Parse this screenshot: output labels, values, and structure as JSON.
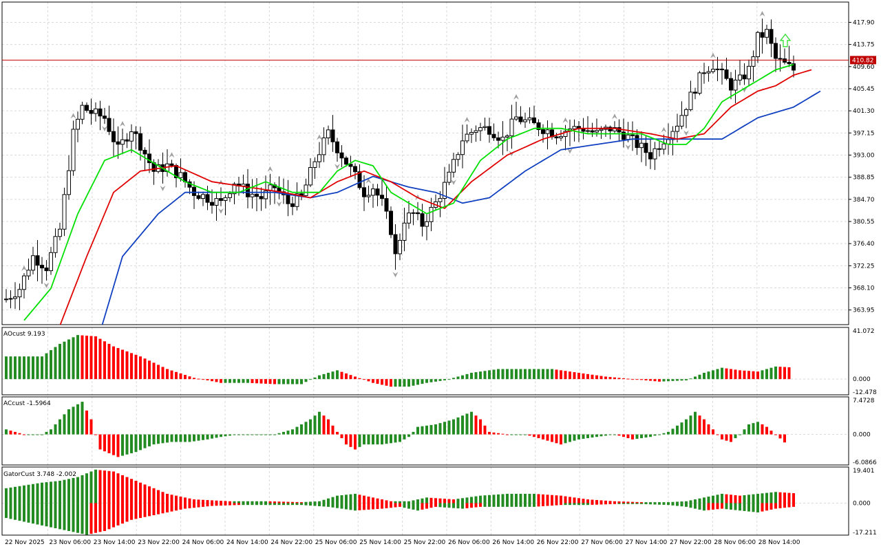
{
  "colors": {
    "bull": "#228B22",
    "bear": "#FF0000",
    "grid": "#d9d9d9",
    "frame": "#000000",
    "alligator_jaw": "#1040C0",
    "alligator_teeth": "#E00000",
    "alligator_lips": "#00E000",
    "price_line": "#C00000",
    "fractal": "#a0a0a0"
  },
  "chart_data": {
    "type": "candlestick",
    "symbol_price_now": "410.82",
    "signal_arrow": "up",
    "x_tick_labels": [
      "22 Nov 2025",
      "23 Nov 06:00",
      "23 Nov 14:00",
      "23 Nov 22:00",
      "24 Nov 06:00",
      "24 Nov 14:00",
      "24 Nov 22:00",
      "25 Nov 06:00",
      "25 Nov 14:00",
      "25 Nov 22:00",
      "26 Nov 06:00",
      "26 Nov 14:00",
      "26 Nov 22:00",
      "27 Nov 06:00",
      "27 Nov 14:00",
      "27 Nov 22:00",
      "28 Nov 06:00",
      "28 Nov 14:00"
    ],
    "price_panel": {
      "y_tick_labels": [
        "417.90",
        "413.75",
        "409.60",
        "405.45",
        "401.30",
        "397.15",
        "393.00",
        "388.85",
        "384.70",
        "380.55",
        "376.40",
        "372.25",
        "368.10",
        "363.95"
      ],
      "ylim": [
        361.2,
        421.7
      ],
      "anchors": [
        [
          0,
          366
        ],
        [
          3,
          368
        ],
        [
          6,
          374
        ],
        [
          9,
          372
        ],
        [
          12,
          379
        ],
        [
          15,
          397
        ],
        [
          17,
          402
        ],
        [
          19,
          401
        ],
        [
          22,
          400
        ],
        [
          25,
          394
        ],
        [
          28,
          398
        ],
        [
          30,
          395
        ],
        [
          33,
          390
        ],
        [
          36,
          391
        ],
        [
          39,
          389
        ],
        [
          42,
          386
        ],
        [
          45,
          385
        ],
        [
          48,
          384
        ],
        [
          51,
          388
        ],
        [
          54,
          386
        ],
        [
          57,
          385
        ],
        [
          60,
          387
        ],
        [
          63,
          384
        ],
        [
          66,
          385
        ],
        [
          69,
          392
        ],
        [
          72,
          397
        ],
        [
          75,
          393
        ],
        [
          78,
          389
        ],
        [
          80,
          386
        ],
        [
          82,
          387
        ],
        [
          84,
          384
        ],
        [
          86,
          379
        ],
        [
          87,
          374
        ],
        [
          89,
          381
        ],
        [
          91,
          382
        ],
        [
          93,
          380
        ],
        [
          96,
          384
        ],
        [
          99,
          389
        ],
        [
          102,
          396
        ],
        [
          105,
          398
        ],
        [
          108,
          398
        ],
        [
          111,
          396
        ],
        [
          114,
          400
        ],
        [
          117,
          399
        ],
        [
          120,
          398
        ],
        [
          123,
          397
        ],
        [
          126,
          398
        ],
        [
          129,
          398
        ],
        [
          132,
          397
        ],
        [
          135,
          398
        ],
        [
          138,
          397
        ],
        [
          141,
          395
        ],
        [
          144,
          393
        ],
        [
          147,
          396
        ],
        [
          150,
          399
        ],
        [
          153,
          404
        ],
        [
          156,
          409
        ],
        [
          158,
          410
        ],
        [
          160,
          408
        ],
        [
          162,
          406
        ],
        [
          164,
          407
        ],
        [
          166,
          409
        ],
        [
          168,
          415
        ],
        [
          170,
          416
        ],
        [
          172,
          411
        ],
        [
          174,
          410
        ],
        [
          176,
          409
        ]
      ],
      "jaw": [
        [
          20,
          357
        ],
        [
          26,
          374
        ],
        [
          34,
          382
        ],
        [
          40,
          386
        ],
        [
          50,
          386
        ],
        [
          60,
          386
        ],
        [
          68,
          385
        ],
        [
          74,
          386
        ],
        [
          82,
          389
        ],
        [
          90,
          387
        ],
        [
          96,
          386
        ],
        [
          102,
          384
        ],
        [
          108,
          385
        ],
        [
          116,
          390
        ],
        [
          124,
          394
        ],
        [
          132,
          395
        ],
        [
          140,
          396
        ],
        [
          150,
          396
        ],
        [
          160,
          396
        ],
        [
          168,
          400
        ],
        [
          176,
          402
        ],
        [
          182,
          405
        ]
      ],
      "teeth": [
        [
          12,
          361
        ],
        [
          18,
          374
        ],
        [
          24,
          386
        ],
        [
          30,
          390
        ],
        [
          38,
          391
        ],
        [
          46,
          388
        ],
        [
          54,
          387
        ],
        [
          62,
          386
        ],
        [
          68,
          385
        ],
        [
          74,
          388
        ],
        [
          80,
          390
        ],
        [
          86,
          388
        ],
        [
          92,
          385
        ],
        [
          98,
          383
        ],
        [
          104,
          388
        ],
        [
          112,
          393
        ],
        [
          120,
          396
        ],
        [
          128,
          398
        ],
        [
          136,
          398
        ],
        [
          144,
          397
        ],
        [
          150,
          396
        ],
        [
          156,
          397
        ],
        [
          162,
          402
        ],
        [
          168,
          405
        ],
        [
          172,
          406
        ],
        [
          176,
          408
        ],
        [
          180,
          409
        ]
      ],
      "lips": [
        [
          4,
          362
        ],
        [
          10,
          368
        ],
        [
          16,
          382
        ],
        [
          22,
          392
        ],
        [
          28,
          394
        ],
        [
          34,
          391
        ],
        [
          40,
          388
        ],
        [
          46,
          386
        ],
        [
          52,
          386
        ],
        [
          58,
          388
        ],
        [
          64,
          386
        ],
        [
          70,
          386
        ],
        [
          74,
          390
        ],
        [
          78,
          392
        ],
        [
          82,
          391
        ],
        [
          86,
          386
        ],
        [
          90,
          384
        ],
        [
          94,
          382
        ],
        [
          100,
          384
        ],
        [
          106,
          392
        ],
        [
          112,
          396
        ],
        [
          118,
          398
        ],
        [
          124,
          398
        ],
        [
          130,
          397
        ],
        [
          136,
          397
        ],
        [
          142,
          397
        ],
        [
          148,
          395
        ],
        [
          152,
          395
        ],
        [
          156,
          398
        ],
        [
          160,
          403
        ],
        [
          164,
          405
        ],
        [
          168,
          407
        ],
        [
          172,
          409
        ],
        [
          176,
          410
        ]
      ]
    },
    "ao_panel": {
      "label": "AOcust 9.193",
      "y_tick_labels": [
        "41.072",
        "0.000",
        "-12.478"
      ],
      "ylim": [
        -12.478,
        41.072
      ],
      "anchors": [
        [
          0,
          18
        ],
        [
          8,
          18
        ],
        [
          12,
          28
        ],
        [
          16,
          35
        ],
        [
          20,
          34
        ],
        [
          24,
          26
        ],
        [
          30,
          18
        ],
        [
          36,
          8
        ],
        [
          42,
          1
        ],
        [
          48,
          -3
        ],
        [
          54,
          -3
        ],
        [
          60,
          -4
        ],
        [
          66,
          -4
        ],
        [
          70,
          3
        ],
        [
          74,
          7
        ],
        [
          78,
          2
        ],
        [
          82,
          -3
        ],
        [
          86,
          -6
        ],
        [
          90,
          -6
        ],
        [
          94,
          -3
        ],
        [
          98,
          -1
        ],
        [
          104,
          5
        ],
        [
          110,
          8
        ],
        [
          116,
          8
        ],
        [
          122,
          8
        ],
        [
          128,
          5
        ],
        [
          134,
          2
        ],
        [
          140,
          0
        ],
        [
          146,
          -2
        ],
        [
          152,
          -1
        ],
        [
          156,
          5
        ],
        [
          160,
          9
        ],
        [
          164,
          7
        ],
        [
          168,
          6
        ],
        [
          172,
          10
        ],
        [
          176,
          9.2
        ]
      ]
    },
    "ac_panel": {
      "label": "ACcust -1.5964",
      "y_tick_labels": [
        "7.4728",
        "0.000",
        "-6.0866"
      ],
      "ylim": [
        -6.0866,
        7.4728
      ],
      "anchors": [
        [
          0,
          1
        ],
        [
          2,
          0.5
        ],
        [
          4,
          0
        ],
        [
          8,
          0
        ],
        [
          10,
          1
        ],
        [
          14,
          5
        ],
        [
          17,
          6.5
        ],
        [
          19,
          3
        ],
        [
          21,
          -3
        ],
        [
          25,
          -4.5
        ],
        [
          29,
          -3.5
        ],
        [
          33,
          -2
        ],
        [
          37,
          -1.5
        ],
        [
          41,
          -1.5
        ],
        [
          45,
          -1
        ],
        [
          48,
          -0.5
        ],
        [
          52,
          0
        ],
        [
          56,
          0
        ],
        [
          60,
          0
        ],
        [
          64,
          1
        ],
        [
          68,
          3
        ],
        [
          70,
          4.5
        ],
        [
          72,
          3
        ],
        [
          74,
          0.5
        ],
        [
          76,
          -2
        ],
        [
          78,
          -3
        ],
        [
          80,
          -2
        ],
        [
          84,
          -2
        ],
        [
          88,
          -1.5
        ],
        [
          90,
          -0.5
        ],
        [
          92,
          1.5
        ],
        [
          96,
          2
        ],
        [
          100,
          3
        ],
        [
          104,
          4.5
        ],
        [
          106,
          3
        ],
        [
          108,
          0.5
        ],
        [
          112,
          0
        ],
        [
          116,
          0
        ],
        [
          120,
          -1
        ],
        [
          124,
          -2
        ],
        [
          128,
          -1
        ],
        [
          132,
          -0.5
        ],
        [
          136,
          0
        ],
        [
          140,
          -1
        ],
        [
          144,
          -0.5
        ],
        [
          148,
          0.5
        ],
        [
          152,
          3
        ],
        [
          154,
          4.5
        ],
        [
          156,
          3
        ],
        [
          158,
          1
        ],
        [
          160,
          -1
        ],
        [
          162,
          -1.5
        ],
        [
          164,
          0
        ],
        [
          166,
          2
        ],
        [
          168,
          2.5
        ],
        [
          170,
          1.5
        ],
        [
          172,
          0
        ],
        [
          174,
          -1.6
        ]
      ]
    },
    "gator_panel": {
      "label": "GatorCust 3.748 -2.002",
      "y_tick_labels": [
        "19.401",
        "0.000",
        "-17.211"
      ],
      "ylim": [
        -17.211,
        19.401
      ],
      "upper_anchors": [
        [
          0,
          8
        ],
        [
          8,
          11
        ],
        [
          12,
          12
        ],
        [
          16,
          14
        ],
        [
          20,
          18
        ],
        [
          24,
          17
        ],
        [
          30,
          11
        ],
        [
          36,
          5
        ],
        [
          42,
          2
        ],
        [
          50,
          1
        ],
        [
          58,
          1
        ],
        [
          66,
          0.5
        ],
        [
          70,
          1
        ],
        [
          74,
          4
        ],
        [
          78,
          5
        ],
        [
          82,
          3
        ],
        [
          86,
          1
        ],
        [
          90,
          1
        ],
        [
          94,
          3
        ],
        [
          100,
          2
        ],
        [
          106,
          4
        ],
        [
          112,
          5
        ],
        [
          118,
          5
        ],
        [
          124,
          4
        ],
        [
          130,
          2
        ],
        [
          136,
          1
        ],
        [
          142,
          0.5
        ],
        [
          148,
          0.5
        ],
        [
          152,
          1
        ],
        [
          156,
          3
        ],
        [
          160,
          5
        ],
        [
          164,
          4
        ],
        [
          168,
          5
        ],
        [
          172,
          6
        ],
        [
          178,
          5
        ]
      ],
      "lower_anchors": [
        [
          0,
          -8
        ],
        [
          8,
          -12
        ],
        [
          14,
          -15
        ],
        [
          18,
          -17
        ],
        [
          22,
          -15
        ],
        [
          28,
          -9
        ],
        [
          34,
          -6
        ],
        [
          40,
          -3
        ],
        [
          46,
          -1.5
        ],
        [
          52,
          -1
        ],
        [
          60,
          -1
        ],
        [
          66,
          -1
        ],
        [
          72,
          -2
        ],
        [
          78,
          -4
        ],
        [
          84,
          -3
        ],
        [
          88,
          -2
        ],
        [
          92,
          -4
        ],
        [
          96,
          -2
        ],
        [
          102,
          -3
        ],
        [
          106,
          -2
        ],
        [
          112,
          -2
        ],
        [
          118,
          -2
        ],
        [
          124,
          -1
        ],
        [
          130,
          -1
        ],
        [
          136,
          -0.5
        ],
        [
          142,
          -0.5
        ],
        [
          148,
          -1
        ],
        [
          152,
          -2
        ],
        [
          156,
          -4
        ],
        [
          160,
          -3
        ],
        [
          164,
          -4
        ],
        [
          168,
          -5
        ],
        [
          172,
          -3
        ],
        [
          176,
          -2
        ]
      ]
    }
  }
}
